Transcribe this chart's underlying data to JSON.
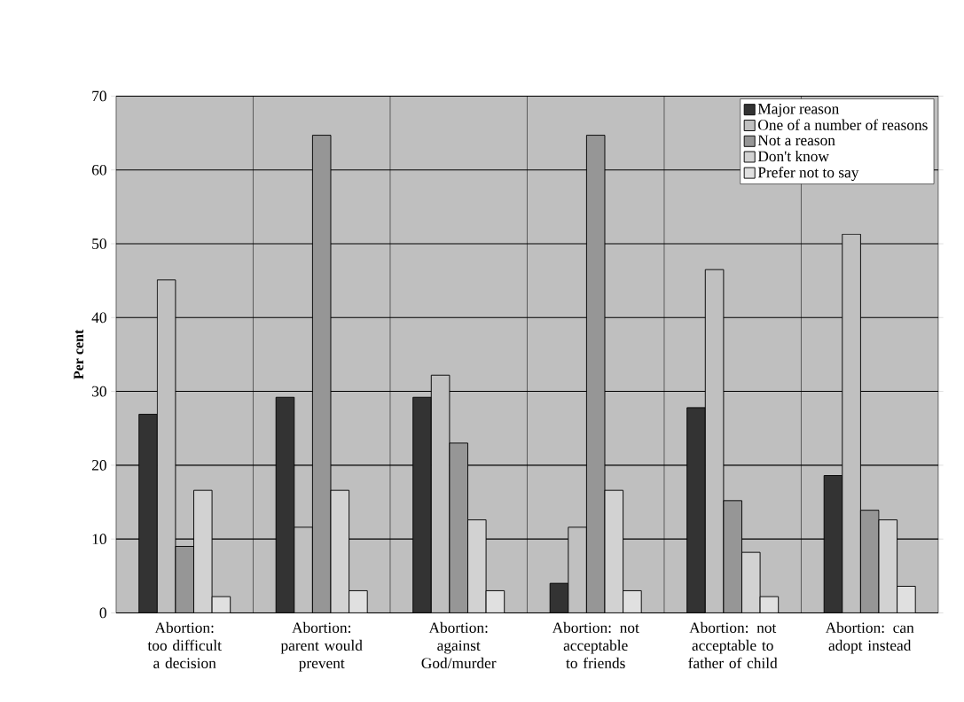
{
  "chart_data": {
    "type": "bar",
    "ylabel": "Per cent",
    "categories": [
      "Abortion: too difficult a decision",
      "Abortion: parent would prevent",
      "Abortion: against God/murder",
      "Abortion: not acceptable to friends",
      "Abortion: not acceptable to father of child",
      "Abortion: can adopt instead"
    ],
    "series": [
      {
        "name": "Major reason",
        "color": "#333333",
        "values": [
          26.9,
          29.2,
          29.2,
          4.0,
          27.8,
          18.6
        ]
      },
      {
        "name": "One of a number of reasons",
        "color": "#c0c0c0",
        "values": [
          45.1,
          11.6,
          32.2,
          11.6,
          46.5,
          51.3
        ]
      },
      {
        "name": "Not a reason",
        "color": "#969696",
        "values": [
          9.0,
          64.7,
          23.0,
          64.7,
          15.2,
          13.9
        ]
      },
      {
        "name": "Don't know",
        "color": "#d2d2d2",
        "values": [
          16.6,
          16.6,
          12.6,
          16.6,
          8.2,
          12.6
        ]
      },
      {
        "name": "Prefer not to say",
        "color": "#e0e0e0",
        "values": [
          2.2,
          3.0,
          3.0,
          3.0,
          2.2,
          3.6
        ]
      }
    ],
    "ylim": [
      0,
      70
    ],
    "yticks": [
      0,
      10,
      20,
      30,
      40,
      50,
      60,
      70
    ],
    "grid": true,
    "legend": "top right"
  }
}
